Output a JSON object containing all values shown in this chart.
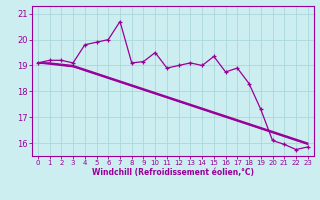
{
  "xlabel": "Windchill (Refroidissement éolien,°C)",
  "background_color": "#cceef0",
  "grid_color": "#aad8dc",
  "line_color": "#990099",
  "xlim": [
    -0.5,
    23.5
  ],
  "ylim": [
    15.5,
    21.3
  ],
  "yticks": [
    16,
    17,
    18,
    19,
    20,
    21
  ],
  "xticks": [
    0,
    1,
    2,
    3,
    4,
    5,
    6,
    7,
    8,
    9,
    10,
    11,
    12,
    13,
    14,
    15,
    16,
    17,
    18,
    19,
    20,
    21,
    22,
    23
  ],
  "hours": [
    0,
    1,
    2,
    3,
    4,
    5,
    6,
    7,
    8,
    9,
    10,
    11,
    12,
    13,
    14,
    15,
    16,
    17,
    18,
    19,
    20,
    21,
    22,
    23
  ],
  "line_main": [
    19.1,
    19.2,
    19.2,
    19.1,
    19.8,
    19.9,
    20.0,
    20.7,
    19.1,
    19.15,
    19.5,
    18.9,
    19.0,
    19.1,
    19.0,
    19.35,
    18.75,
    18.9,
    18.3,
    17.3,
    16.1,
    15.95,
    15.75,
    15.85
  ],
  "line_straight1": [
    19.1,
    19.1,
    19.05,
    19.0,
    18.85,
    18.7,
    18.55,
    18.4,
    18.25,
    18.1,
    17.95,
    17.8,
    17.65,
    17.5,
    17.35,
    17.2,
    17.05,
    16.9,
    16.75,
    16.6,
    16.45,
    16.3,
    16.15,
    16.0
  ],
  "line_straight2": [
    19.1,
    19.05,
    19.0,
    18.95,
    18.82,
    18.68,
    18.52,
    18.37,
    18.22,
    18.07,
    17.92,
    17.77,
    17.62,
    17.47,
    17.32,
    17.17,
    17.02,
    16.87,
    16.72,
    16.57,
    16.42,
    16.27,
    16.12,
    15.97
  ],
  "line_straight3": [
    19.1,
    19.08,
    19.02,
    18.96,
    18.8,
    18.65,
    18.5,
    18.35,
    18.2,
    18.05,
    17.9,
    17.75,
    17.6,
    17.45,
    17.3,
    17.15,
    17.0,
    16.85,
    16.7,
    16.55,
    16.4,
    16.25,
    16.1,
    15.95
  ]
}
